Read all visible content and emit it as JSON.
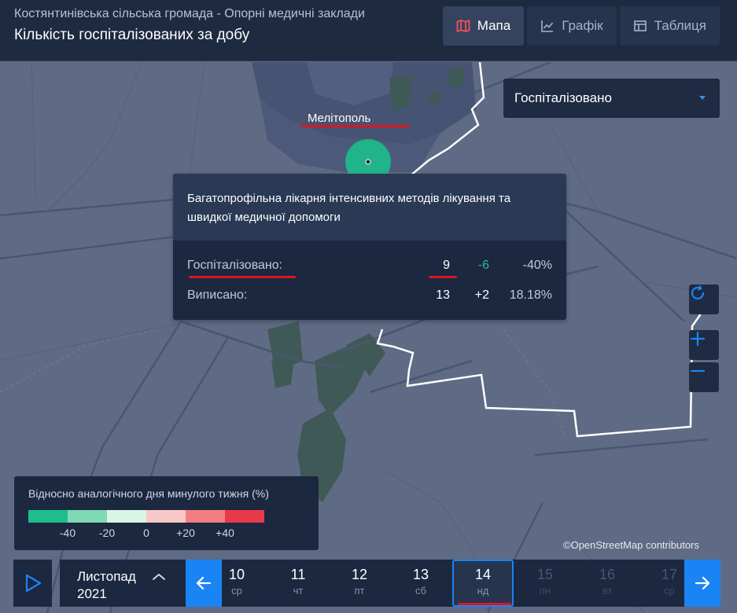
{
  "header": {
    "subtitle": "Костянтинівська сільська громада - Опорні медичні заклади",
    "title": "Кількість госпіталізованих за добу",
    "tabs": [
      {
        "label": "Мапа",
        "icon": "map-icon",
        "active": true
      },
      {
        "label": "Графік",
        "icon": "line-chart-icon",
        "active": false
      },
      {
        "label": "Таблиця",
        "icon": "table-icon",
        "active": false
      }
    ]
  },
  "select": {
    "value": "Госпіталізовано"
  },
  "map": {
    "city": "Мелітополь",
    "attribution": "©OpenStreetMap contributors"
  },
  "tooltip": {
    "title": "Багатопрофільна лікарня інтенсивних методів лікування та швидкої медичної допомоги",
    "rows": [
      {
        "label": "Госпіталізовано:",
        "value": "9",
        "change": "-6",
        "percent": "-40%"
      },
      {
        "label": "Виписано:",
        "value": "13",
        "change": "+2",
        "percent": "18.18%"
      }
    ]
  },
  "legend": {
    "title": "Відносно аналогічного дня минулого тижня (%)",
    "colors": [
      "#1dbd8c",
      "#7fd9b4",
      "#d9f5e6",
      "#f9c8c6",
      "#f27f80",
      "#e8394a"
    ],
    "ticks": [
      "-40",
      "-20",
      "0",
      "+20",
      "+40"
    ]
  },
  "timeline": {
    "month": "Листопад",
    "year": "2021",
    "days": [
      {
        "num": "10",
        "wd": "ср",
        "state": "normal"
      },
      {
        "num": "11",
        "wd": "чт",
        "state": "normal"
      },
      {
        "num": "12",
        "wd": "пт",
        "state": "normal"
      },
      {
        "num": "13",
        "wd": "сб",
        "state": "normal"
      },
      {
        "num": "14",
        "wd": "нд",
        "state": "selected"
      },
      {
        "num": "15",
        "wd": "пн",
        "state": "disabled"
      },
      {
        "num": "16",
        "wd": "вт",
        "state": "disabled"
      },
      {
        "num": "17",
        "wd": "ср",
        "state": "disabled"
      }
    ]
  }
}
